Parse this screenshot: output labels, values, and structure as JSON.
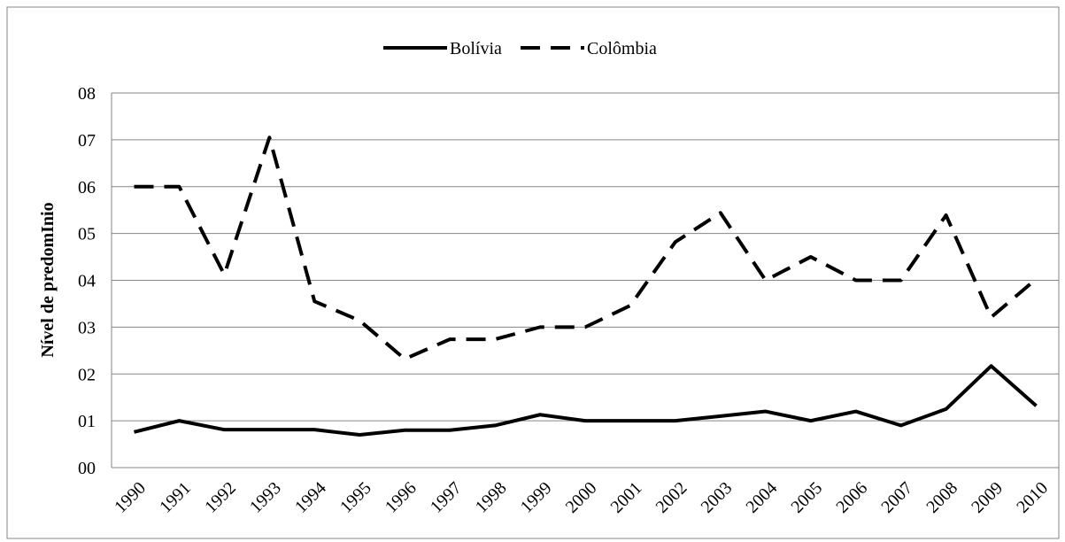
{
  "chart_data": {
    "type": "line",
    "y_label": "Nível de predomInio",
    "categories": [
      "1990",
      "1991",
      "1992",
      "1993",
      "1994",
      "1995",
      "1996",
      "1997",
      "1998",
      "1999",
      "2000",
      "2001",
      "2002",
      "2003",
      "2004",
      "2005",
      "2006",
      "2007",
      "2008",
      "2009",
      "2010"
    ],
    "series": [
      {
        "name": "Bolívia",
        "color": "#000000",
        "line_style": "solid",
        "values": [
          0.76,
          1.0,
          0.81,
          0.81,
          0.81,
          0.7,
          0.8,
          0.8,
          0.9,
          1.13,
          1.0,
          1.0,
          1.0,
          1.1,
          1.2,
          1.0,
          1.2,
          0.9,
          1.25,
          2.17,
          1.32
        ]
      },
      {
        "name": "Colômbia",
        "color": "#000000",
        "line_style": "dashed",
        "values": [
          6.0,
          6.0,
          4.12,
          7.05,
          3.55,
          3.14,
          2.32,
          2.74,
          2.74,
          3.0,
          3.0,
          3.46,
          4.82,
          5.44,
          4.0,
          4.5,
          4.0,
          4.0,
          5.39,
          3.21,
          4.03
        ]
      }
    ],
    "ylim": [
      0,
      8
    ],
    "yticks": [
      {
        "value": 0,
        "label": "00"
      },
      {
        "value": 1,
        "label": "01"
      },
      {
        "value": 2,
        "label": "02"
      },
      {
        "value": 3,
        "label": "03"
      },
      {
        "value": 4,
        "label": "04"
      },
      {
        "value": 5,
        "label": "05"
      },
      {
        "value": 6,
        "label": "06"
      },
      {
        "value": 7,
        "label": "07"
      },
      {
        "value": 8,
        "label": "08"
      }
    ],
    "grid": true,
    "legend": "top"
  }
}
